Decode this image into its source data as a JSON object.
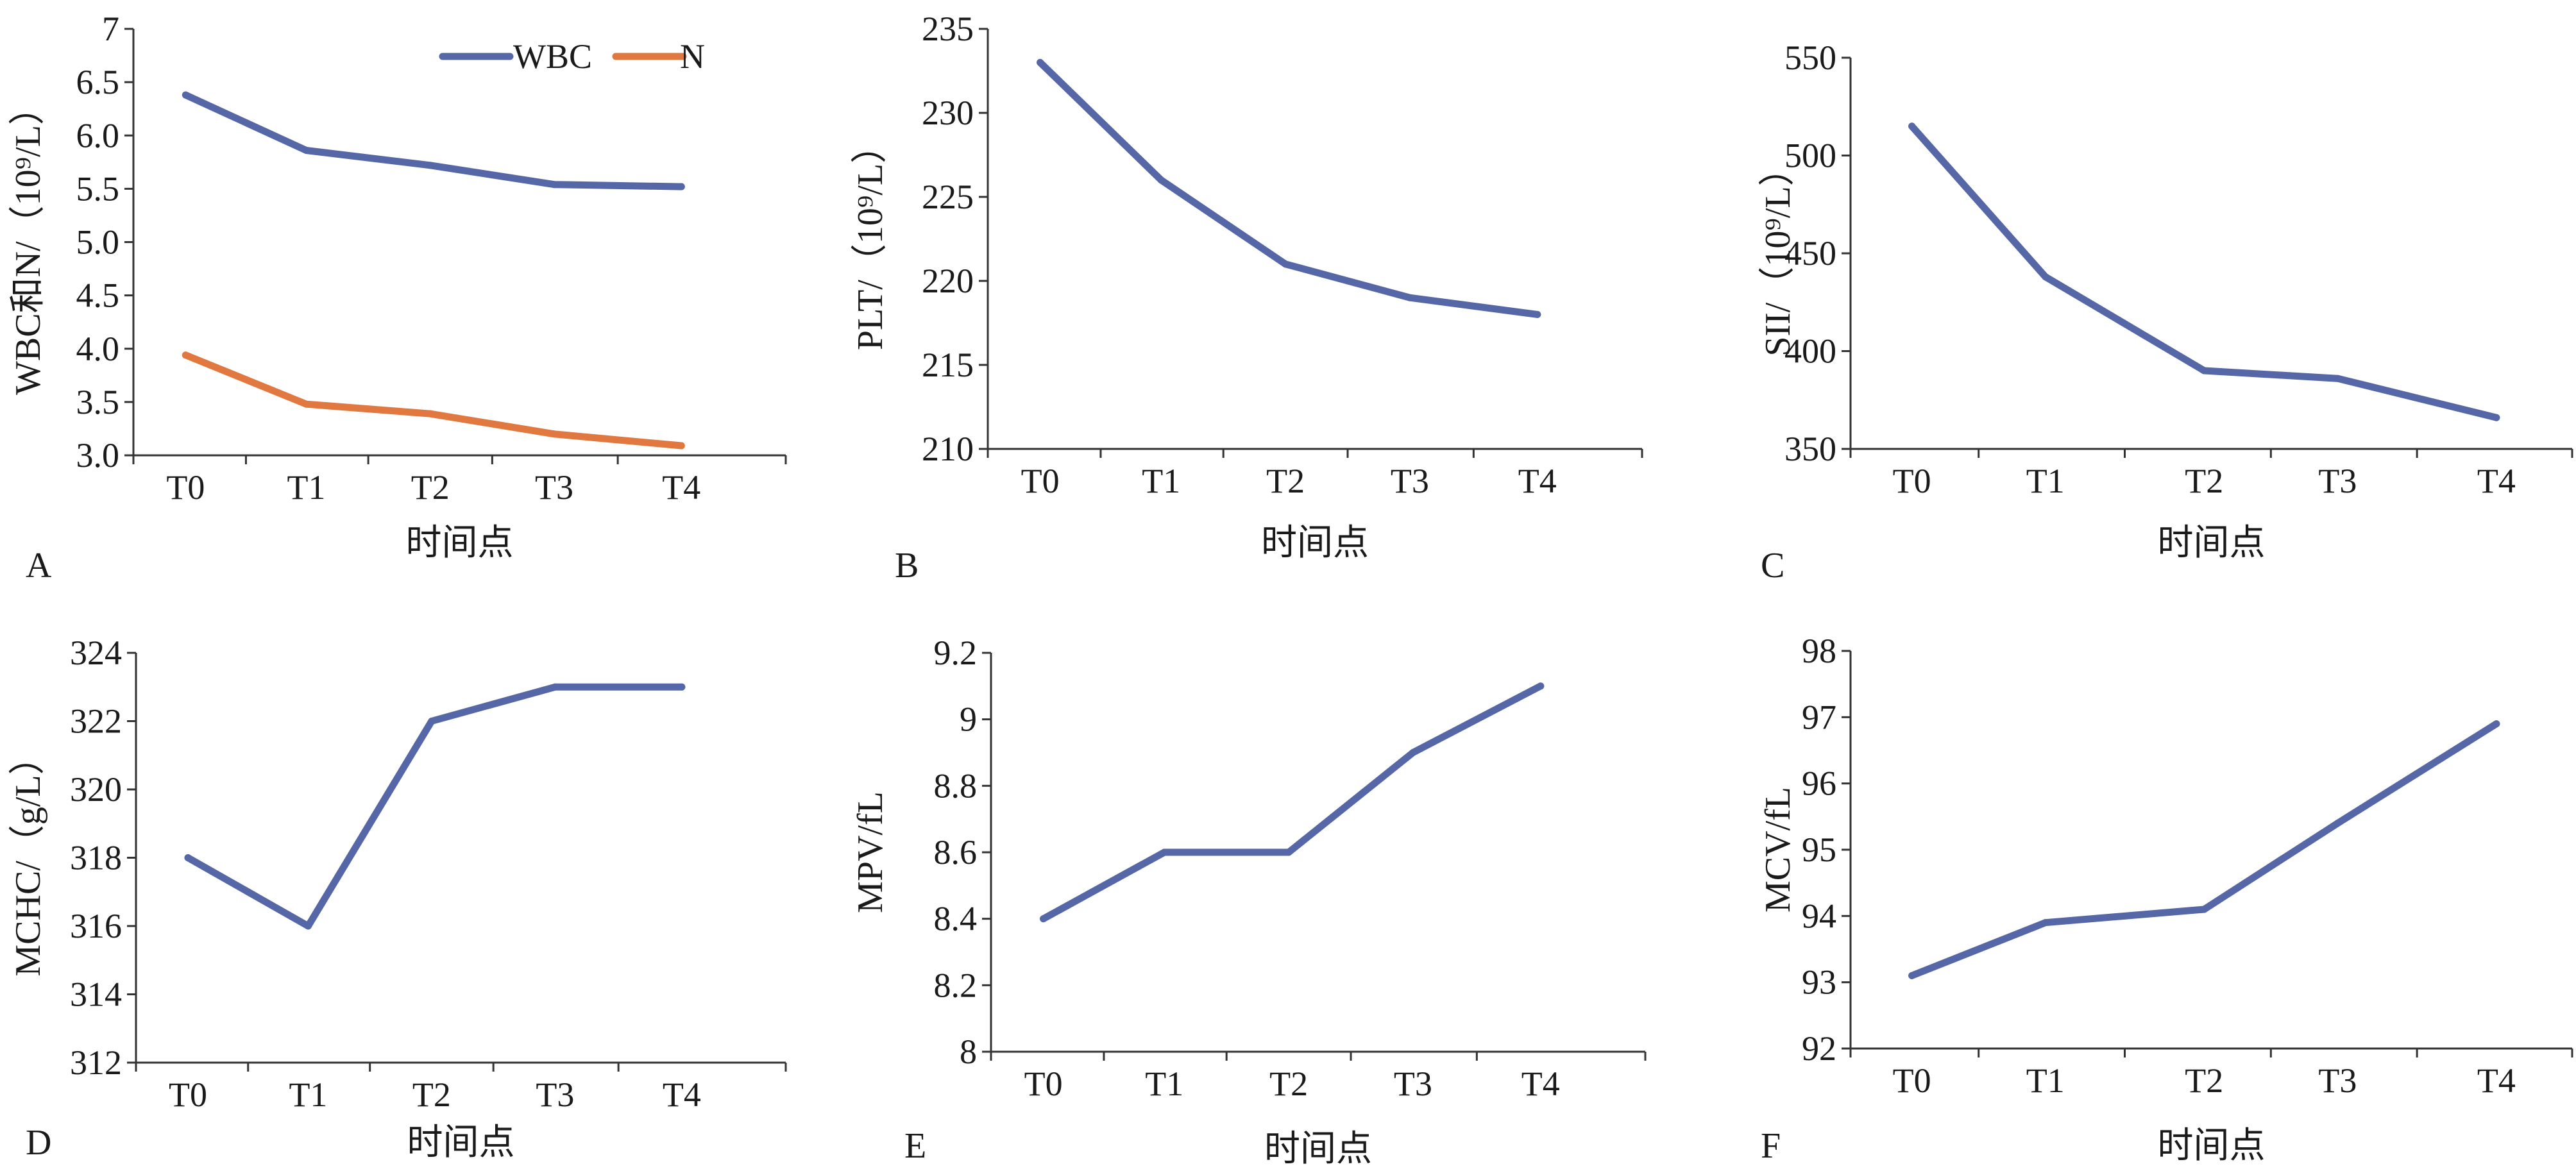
{
  "colors": {
    "series_1": "#5567a6",
    "series_2": "#e07840",
    "axis": "#333333"
  },
  "chart_data": [
    {
      "panel_label": "A",
      "type": "line",
      "categories": [
        "T0",
        "T1",
        "T2",
        "T3",
        "T4"
      ],
      "series": [
        {
          "name": "WBC",
          "values": [
            6.38,
            5.86,
            5.72,
            5.54,
            5.52
          ]
        },
        {
          "name": "N",
          "values": [
            3.94,
            3.48,
            3.39,
            3.2,
            3.09
          ]
        }
      ],
      "xlabel": "时间点",
      "ylabel": "WBC和N/（10⁹/L）",
      "ylim": [
        3.0,
        7.0
      ],
      "yticks": [
        3.0,
        3.5,
        4.0,
        4.5,
        5.0,
        5.5,
        6.0,
        6.5,
        7
      ],
      "ytick_labels": [
        "3.0",
        "3.5",
        "4.0",
        "4.5",
        "5.0",
        "5.5",
        "6.0",
        "6.5",
        "7"
      ],
      "legend": "top-right",
      "grid": false
    },
    {
      "panel_label": "B",
      "type": "line",
      "categories": [
        "T0",
        "T1",
        "T2",
        "T3",
        "T4"
      ],
      "series": [
        {
          "values": [
            233,
            226,
            221,
            219,
            218
          ]
        }
      ],
      "xlabel": "时间点",
      "ylabel": "PLT/（10⁹/L）",
      "ylim": [
        210,
        235
      ],
      "yticks": [
        210,
        215,
        220,
        225,
        230,
        235
      ],
      "ytick_labels": [
        "210",
        "215",
        "220",
        "225",
        "230",
        "235"
      ],
      "grid": false
    },
    {
      "panel_label": "C",
      "type": "line",
      "categories": [
        "T0",
        "T1",
        "T2",
        "T3",
        "T4"
      ],
      "series": [
        {
          "values": [
            515,
            438,
            390,
            386,
            366
          ]
        }
      ],
      "xlabel": "时间点",
      "ylabel": "SII/（10⁹/L）",
      "ylim": [
        350,
        550
      ],
      "yticks": [
        350,
        400,
        450,
        500,
        550
      ],
      "ytick_labels": [
        "350",
        "400",
        "450",
        "500",
        "550"
      ],
      "grid": false
    },
    {
      "panel_label": "D",
      "type": "line",
      "categories": [
        "T0",
        "T1",
        "T2",
        "T3",
        "T4"
      ],
      "series": [
        {
          "values": [
            318,
            316,
            322,
            323,
            323
          ]
        }
      ],
      "xlabel": "时间点",
      "ylabel": "MCHC/（g/L）",
      "ylim": [
        312,
        324
      ],
      "yticks": [
        312,
        314,
        316,
        318,
        320,
        322,
        324
      ],
      "ytick_labels": [
        "312",
        "314",
        "316",
        "318",
        "320",
        "322",
        "324"
      ],
      "grid": false
    },
    {
      "panel_label": "E",
      "type": "line",
      "categories": [
        "T0",
        "T1",
        "T2",
        "T3",
        "T4"
      ],
      "series": [
        {
          "values": [
            8.4,
            8.6,
            8.6,
            8.9,
            9.1
          ]
        }
      ],
      "xlabel": "时间点",
      "ylabel": "MPV/fL",
      "ylim": [
        8.0,
        9.2
      ],
      "yticks": [
        8.0,
        8.2,
        8.4,
        8.6,
        8.8,
        9.0,
        9.2
      ],
      "ytick_labels": [
        "8",
        "8.2",
        "8.4",
        "8.6",
        "8.8",
        "9",
        "9.2"
      ],
      "grid": false
    },
    {
      "panel_label": "F",
      "type": "line",
      "categories": [
        "T0",
        "T1",
        "T2",
        "T3",
        "T4"
      ],
      "series": [
        {
          "values": [
            93.1,
            93.9,
            94.1,
            95.4,
            96.9
          ]
        }
      ],
      "xlabel": "时间点",
      "ylabel": "MCV/fL",
      "ylim": [
        92,
        98
      ],
      "yticks": [
        92,
        93,
        94,
        95,
        96,
        97,
        98
      ],
      "ytick_labels": [
        "92",
        "93",
        "94",
        "95",
        "96",
        "97",
        "98"
      ],
      "grid": false
    }
  ]
}
